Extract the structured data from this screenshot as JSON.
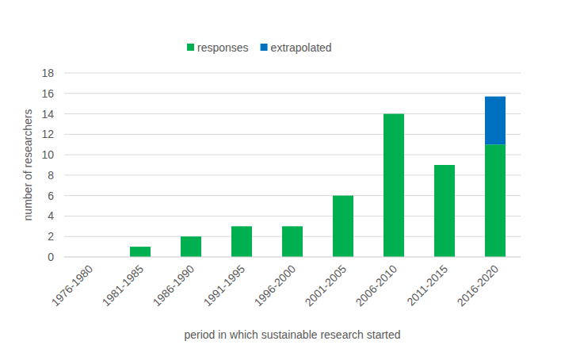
{
  "chart_data": {
    "type": "bar",
    "stacked": true,
    "grid": true,
    "legend": "top",
    "x_label": "period in which sustainable research started",
    "y_label": "number of researchers",
    "categories": [
      "1976-1980",
      "1981-1985",
      "1986-1990",
      "1991-1995",
      "1996-2000",
      "2001-2005",
      "2006-2010",
      "2011-2015",
      "2016-2020"
    ],
    "series": [
      {
        "name": "responses",
        "color": "#00b050",
        "values": [
          0,
          1,
          2,
          3,
          3,
          6,
          14,
          9,
          11
        ]
      },
      {
        "name": "extrapolated",
        "color": "#0070c0",
        "values": [
          null,
          null,
          null,
          null,
          null,
          null,
          null,
          null,
          4.7
        ]
      }
    ],
    "ylim": [
      0,
      18
    ],
    "yticks": [
      0,
      2,
      4,
      6,
      8,
      10,
      12,
      14,
      16,
      18
    ]
  }
}
